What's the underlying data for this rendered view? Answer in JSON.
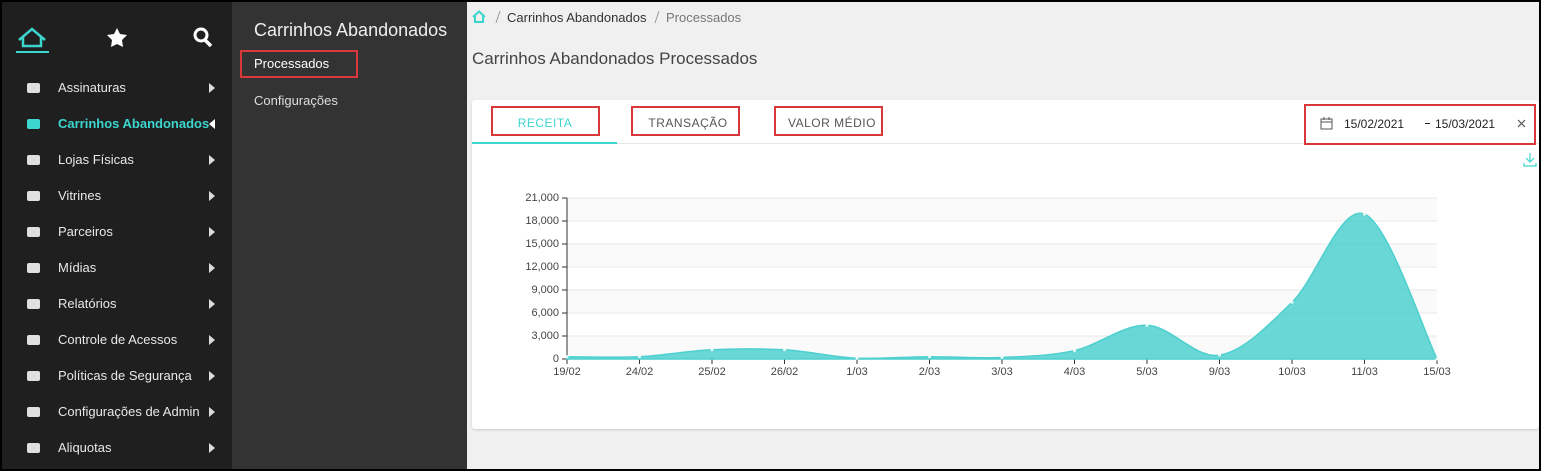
{
  "sidebar": {
    "menu": [
      {
        "label": "Assinaturas"
      },
      {
        "label": "Carrinhos Abandonados",
        "active": true
      },
      {
        "label": "Lojas Físicas"
      },
      {
        "label": "Vitrines"
      },
      {
        "label": "Parceiros"
      },
      {
        "label": "Mídias"
      },
      {
        "label": "Relatórios"
      },
      {
        "label": "Controle de Acessos"
      },
      {
        "label": "Políticas de Segurança"
      },
      {
        "label": "Configurações de Admin"
      },
      {
        "label": "Aliquotas"
      }
    ]
  },
  "submenu": {
    "title": "Carrinhos Abandonados",
    "items": [
      "Processados",
      "Configurações"
    ]
  },
  "breadcrumb": [
    "Carrinhos Abandonados",
    "Processados"
  ],
  "page_title": "Carrinhos Abandonados Processados",
  "tabs": [
    "RECEITA",
    "TRANSAÇÃO",
    "VALOR MÉDIO"
  ],
  "date_range": {
    "start": "15/02/2021",
    "end": "15/03/2021"
  },
  "chart_data": {
    "type": "area",
    "categories": [
      "19/02",
      "24/02",
      "25/02",
      "26/02",
      "1/03",
      "2/03",
      "3/03",
      "4/03",
      "5/03",
      "9/03",
      "10/03",
      "11/03",
      "15/03"
    ],
    "values": [
      300,
      300,
      1200,
      1200,
      100,
      300,
      200,
      1100,
      4400,
      500,
      7400,
      18900,
      0
    ],
    "color": "#4dd0cf",
    "ylim": [
      0,
      21000
    ],
    "yticks": [
      0,
      {
        "value": 3000,
        "label": "3,000"
      },
      {
        "value": 6000,
        "label": "6,000"
      },
      {
        "value": 9000,
        "label": "9,000"
      },
      {
        "value": 12000,
        "label": "12,000"
      },
      {
        "value": 15000,
        "label": "15,000"
      },
      {
        "value": 18000,
        "label": "18,000"
      },
      {
        "value": 21000,
        "label": "21,000"
      }
    ],
    "grid": true
  }
}
